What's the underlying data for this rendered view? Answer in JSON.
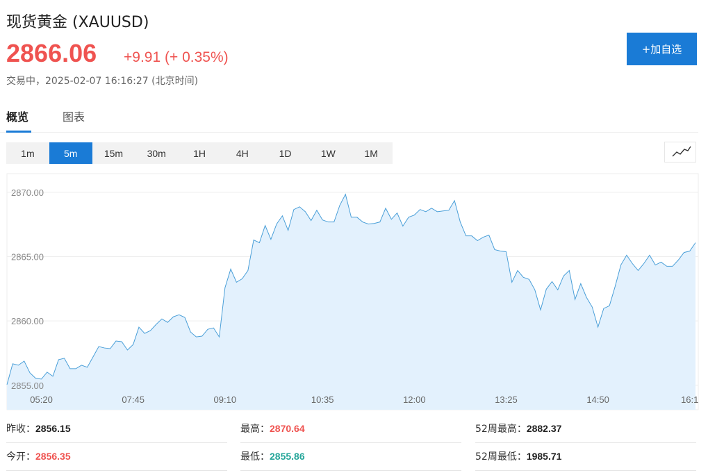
{
  "header": {
    "title": "现货黄金",
    "symbol": "(XAUUSD)",
    "price": "2866.06",
    "change": "+9.91",
    "change_pct": "(+ 0.35%)",
    "status": "交易中，2025-02-07 16:16:27 (北京时间)",
    "button": "+加自选"
  },
  "tabs": [
    "概览",
    "图表"
  ],
  "intervals": [
    "1m",
    "5m",
    "15m",
    "30m",
    "1H",
    "4H",
    "1D",
    "1W",
    "1M"
  ],
  "stats": [
    [
      {
        "label": "昨收：",
        "value": "2856.15"
      },
      {
        "label": "最高：",
        "value": "2870.64",
        "color": "#ef5350"
      },
      {
        "label": "52周最高：",
        "value": "2882.37"
      }
    ],
    [
      {
        "label": "今开：",
        "value": "2856.35",
        "color": "#ef5350"
      },
      {
        "label": "最低：",
        "value": "2855.86",
        "color": "#26a69a"
      },
      {
        "label": "52周最低：",
        "value": "1985.71"
      }
    ]
  ],
  "chart_data": {
    "type": "line",
    "color": "#4a9fd8",
    "fill": "#e3f1fd",
    "grid": true,
    "categories": [
      null,
      null,
      null,
      null,
      null,
      null,
      "05:20",
      null,
      null,
      null,
      null,
      null,
      null,
      null,
      null,
      null,
      null,
      null,
      null,
      null,
      null,
      null,
      "07:45",
      null,
      null,
      null,
      null,
      null,
      null,
      null,
      null,
      null,
      null,
      null,
      null,
      null,
      null,
      null,
      "09:10",
      null,
      null,
      null,
      null,
      null,
      null,
      null,
      null,
      null,
      null,
      null,
      null,
      null,
      null,
      null,
      null,
      "10:35",
      null,
      null,
      null,
      null,
      null,
      null,
      null,
      null,
      null,
      null,
      null,
      null,
      null,
      null,
      null,
      "12:00",
      null,
      null,
      null,
      null,
      null,
      null,
      null,
      null,
      null,
      null,
      null,
      null,
      null,
      null,
      null,
      "13:25",
      null,
      null,
      null,
      null,
      null,
      null,
      null,
      null,
      null,
      null,
      null,
      null,
      null,
      null,
      null,
      "14:50",
      null,
      null,
      null,
      null,
      null,
      null,
      null,
      null,
      null,
      null,
      null,
      null,
      null,
      null,
      null,
      "16:1",
      null
    ],
    "values": [
      2855.05,
      2856.67,
      2856.56,
      2856.88,
      2855.97,
      2855.54,
      2855.48,
      2856.02,
      2855.7,
      2856.99,
      2857.1,
      2856.29,
      2856.29,
      2856.56,
      2856.4,
      2857.2,
      2858.01,
      2857.9,
      2857.85,
      2858.44,
      2858.39,
      2857.74,
      2858.17,
      2859.52,
      2859.03,
      2859.25,
      2859.73,
      2860.16,
      2859.89,
      2860.32,
      2860.48,
      2860.27,
      2859.14,
      2858.76,
      2858.82,
      2859.35,
      2859.46,
      2858.76,
      2862.58,
      2864.03,
      2863.01,
      2863.28,
      2863.92,
      2866.29,
      2866.08,
      2867.42,
      2866.34,
      2867.53,
      2868.17,
      2867.04,
      2868.66,
      2868.87,
      2868.49,
      2867.8,
      2868.6,
      2867.85,
      2867.69,
      2867.69,
      2868.98,
      2869.84,
      2868.06,
      2868.06,
      2867.69,
      2867.53,
      2867.58,
      2867.69,
      2868.76,
      2867.9,
      2868.39,
      2867.37,
      2868.06,
      2868.23,
      2868.66,
      2868.49,
      2868.76,
      2868.49,
      2868.55,
      2868.6,
      2869.35,
      2867.69,
      2866.61,
      2866.61,
      2866.24,
      2866.51,
      2866.67,
      2865.54,
      2865.43,
      2865.38,
      2863.01,
      2863.92,
      2863.39,
      2863.23,
      2862.42,
      2860.86,
      2862.47,
      2863.06,
      2862.42,
      2863.49,
      2863.92,
      2861.67,
      2862.9,
      2861.83,
      2861.08,
      2859.52,
      2860.97,
      2861.18,
      2862.69,
      2864.35,
      2865.11,
      2864.46,
      2863.92,
      2864.46,
      2865.11,
      2864.35,
      2864.57,
      2864.25,
      2864.25,
      2864.73,
      2865.32,
      2865.43,
      2866.08
    ],
    "ylim": [
      2853.1,
      2871.45
    ],
    "yticks": [
      {
        "value": 2855,
        "label": "2855.00"
      },
      {
        "value": 2860,
        "label": "2860.00"
      },
      {
        "value": 2865,
        "label": "2865.00"
      },
      {
        "value": 2870,
        "label": "2870.00"
      }
    ]
  }
}
